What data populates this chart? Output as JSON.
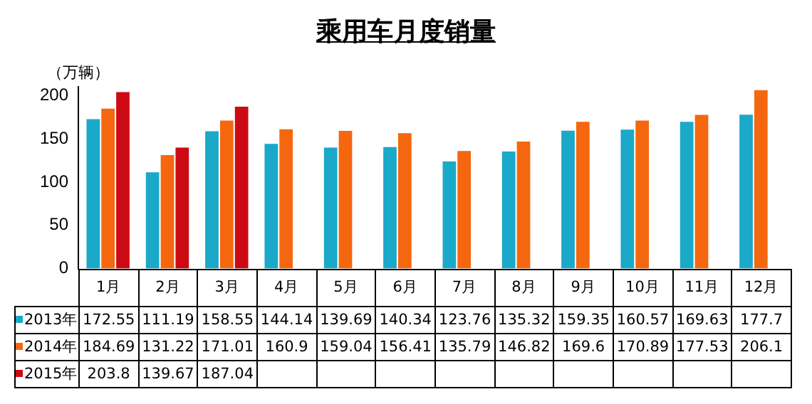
{
  "chart_data": {
    "type": "bar",
    "title": "乘用车月度销量",
    "ylabel": "（万辆）",
    "categories": [
      "1月",
      "2月",
      "3月",
      "4月",
      "5月",
      "6月",
      "7月",
      "8月",
      "9月",
      "10月",
      "11月",
      "12月"
    ],
    "series": [
      {
        "name": "2013年",
        "color": "#1aa9c9",
        "values": [
          172.55,
          111.19,
          158.55,
          144.14,
          139.69,
          140.34,
          123.76,
          135.32,
          159.35,
          160.57,
          169.63,
          177.7
        ]
      },
      {
        "name": "2014年",
        "color": "#f5670f",
        "values": [
          184.69,
          131.22,
          171.01,
          160.9,
          159.04,
          156.41,
          135.79,
          146.82,
          169.6,
          170.89,
          177.53,
          206.1
        ]
      },
      {
        "name": "2015年",
        "color": "#cc0a14",
        "values": [
          203.8,
          139.67,
          187.04,
          null,
          null,
          null,
          null,
          null,
          null,
          null,
          null,
          null
        ]
      }
    ],
    "ylim": [
      0,
      210
    ],
    "yticks": [
      0,
      50,
      100,
      150,
      200
    ],
    "grid": false,
    "legend": "bottom",
    "data_labels": true
  }
}
